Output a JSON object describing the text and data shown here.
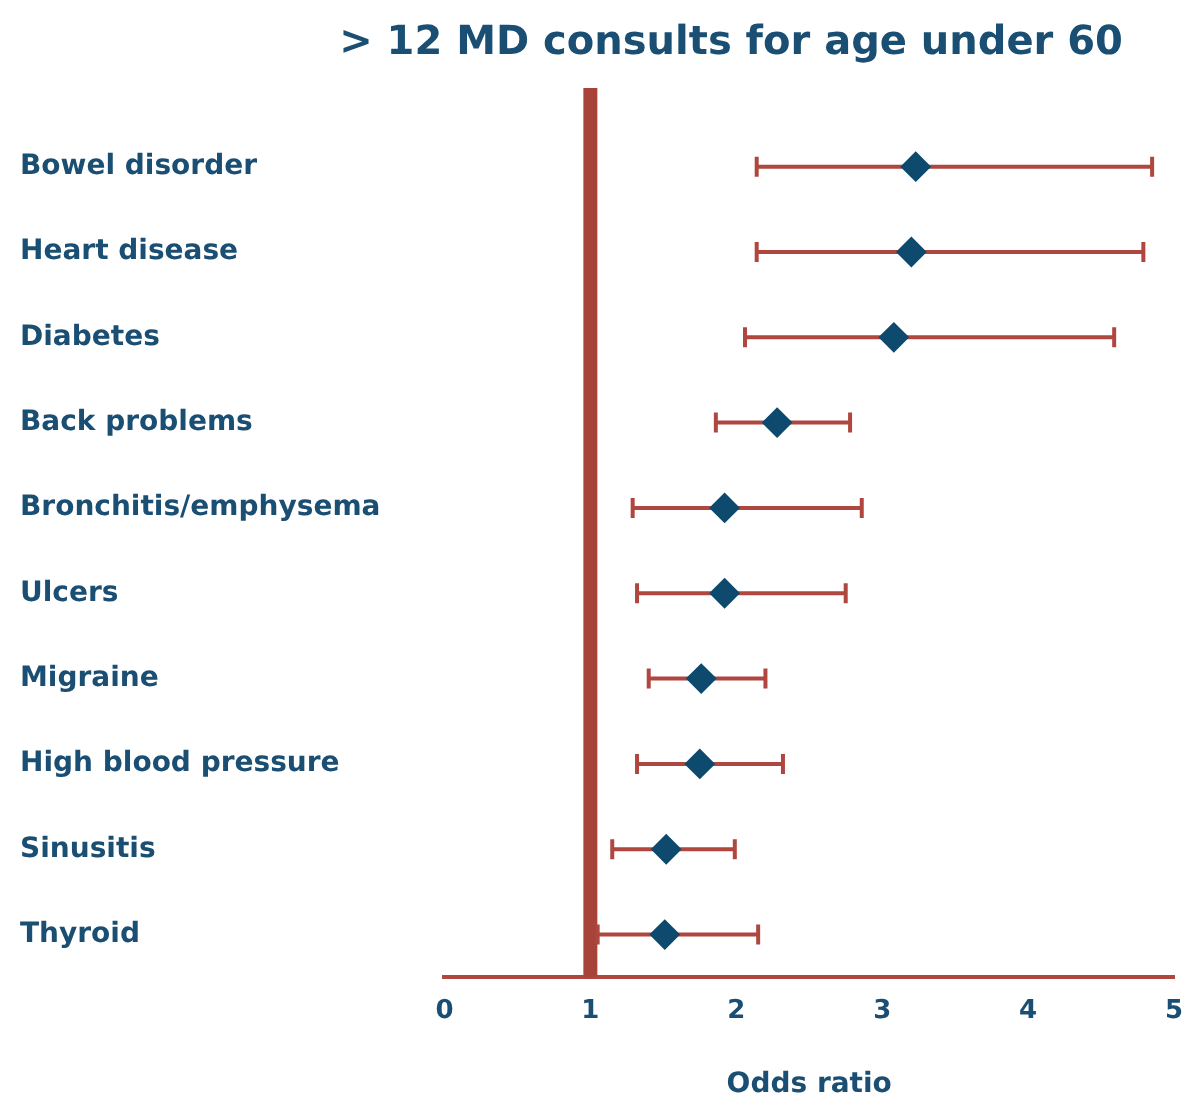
{
  "chart_data": {
    "type": "scatter",
    "orientation": "horizontal",
    "title": "> 12 MD consults for age under 60",
    "xlabel": "Odds ratio",
    "categories": [
      "Bowel disorder",
      "Heart disease",
      "Diabetes",
      "Back problems",
      "Bronchitis/emphysema",
      "Ulcers",
      "Migraine",
      "High blood pressure",
      "Sinusitis",
      "Thyroid"
    ],
    "values": [
      3.23,
      3.2,
      3.08,
      2.28,
      1.92,
      1.92,
      1.76,
      1.75,
      1.52,
      1.51
    ],
    "errors": [
      [
        2.14,
        4.85
      ],
      [
        2.14,
        4.79
      ],
      [
        2.06,
        4.59
      ],
      [
        1.86,
        2.78
      ],
      [
        1.29,
        2.86
      ],
      [
        1.32,
        2.75
      ],
      [
        1.4,
        2.2
      ],
      [
        1.32,
        2.32
      ],
      [
        1.15,
        1.99
      ],
      [
        1.05,
        2.15
      ]
    ],
    "color": "#0d4a6e",
    "xlim": [
      0,
      5
    ],
    "xticks": [
      0,
      1,
      2,
      3,
      4,
      5
    ],
    "ref_lines": [
      {
        "axis": "x",
        "value": 1,
        "color": "#a8433a"
      }
    ],
    "marker": "diamond",
    "grid": false,
    "legend": false
  }
}
